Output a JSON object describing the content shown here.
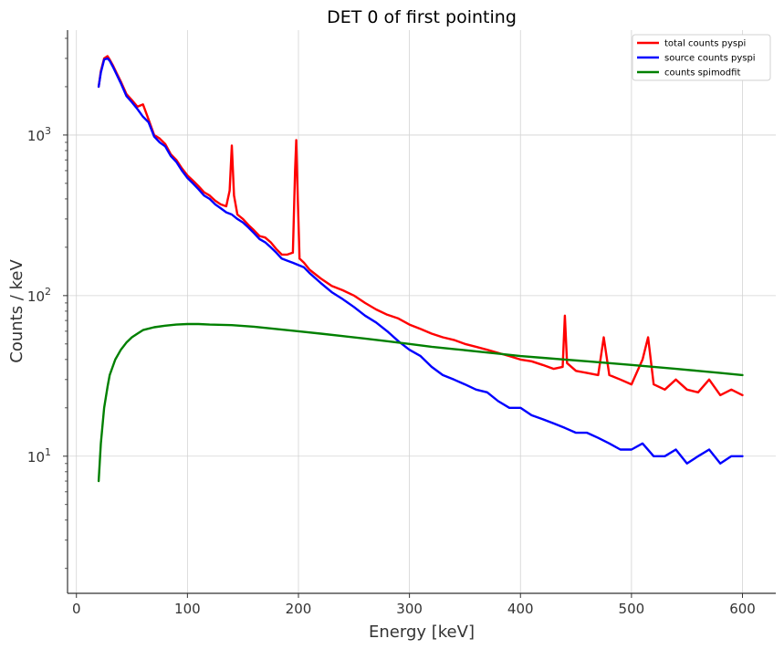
{
  "chart_data": {
    "type": "line",
    "title": "DET 0 of first pointing",
    "xlabel": "Energy [keV]",
    "ylabel": "Counts / keV",
    "xlim": [
      -8,
      630
    ],
    "ylim": [
      1.4,
      4500
    ],
    "yscale": "log",
    "grid": true,
    "legend_position": "top-right",
    "x_ticks": [
      0,
      100,
      200,
      300,
      400,
      500,
      600
    ],
    "x_tick_labels": [
      "0",
      "100",
      "200",
      "300",
      "400",
      "500",
      "600"
    ],
    "y_ticks": [
      10,
      100,
      1000
    ],
    "y_tick_labels": [
      {
        "base": "10",
        "exp": "1"
      },
      {
        "base": "10",
        "exp": "2"
      },
      {
        "base": "10",
        "exp": "3"
      }
    ],
    "series": [
      {
        "name": "total counts pyspi",
        "color": "#ff0000",
        "x": [
          20,
          22,
          25,
          28,
          30,
          33,
          36,
          40,
          45,
          50,
          55,
          60,
          65,
          70,
          75,
          80,
          85,
          90,
          95,
          100,
          105,
          110,
          115,
          120,
          125,
          130,
          135,
          138,
          140,
          142,
          145,
          150,
          155,
          160,
          165,
          170,
          175,
          180,
          185,
          190,
          195,
          197,
          198,
          199,
          201,
          205,
          210,
          220,
          230,
          240,
          250,
          260,
          270,
          280,
          290,
          300,
          310,
          320,
          330,
          340,
          350,
          360,
          370,
          380,
          390,
          400,
          410,
          420,
          430,
          438,
          440,
          442,
          450,
          460,
          470,
          475,
          480,
          490,
          500,
          510,
          515,
          520,
          530,
          540,
          550,
          560,
          570,
          580,
          590,
          600
        ],
        "values": [
          2000,
          2500,
          3000,
          3100,
          2950,
          2700,
          2450,
          2150,
          1800,
          1650,
          1500,
          1550,
          1250,
          1000,
          950,
          880,
          760,
          700,
          620,
          560,
          520,
          480,
          440,
          420,
          390,
          370,
          360,
          450,
          860,
          420,
          320,
          300,
          275,
          255,
          235,
          230,
          215,
          195,
          180,
          180,
          185,
          600,
          930,
          500,
          170,
          160,
          145,
          128,
          115,
          108,
          100,
          90,
          82,
          76,
          72,
          66,
          62,
          58,
          55,
          53,
          50,
          48,
          46,
          44,
          42,
          40,
          39,
          37,
          35,
          36,
          75,
          38,
          34,
          33,
          32,
          55,
          32,
          30,
          28,
          40,
          55,
          28,
          26,
          30,
          26,
          25,
          30,
          24,
          26,
          24
        ]
      },
      {
        "name": "source counts pyspi",
        "color": "#0000ff",
        "x": [
          20,
          22,
          25,
          28,
          30,
          33,
          36,
          40,
          45,
          50,
          55,
          60,
          65,
          70,
          75,
          80,
          85,
          90,
          95,
          100,
          105,
          110,
          115,
          120,
          125,
          130,
          135,
          140,
          145,
          150,
          155,
          160,
          165,
          170,
          175,
          180,
          185,
          190,
          195,
          200,
          205,
          210,
          220,
          230,
          240,
          250,
          260,
          270,
          280,
          290,
          300,
          310,
          320,
          330,
          340,
          350,
          360,
          370,
          380,
          390,
          400,
          410,
          420,
          430,
          440,
          450,
          460,
          470,
          480,
          490,
          500,
          510,
          520,
          530,
          540,
          550,
          560,
          570,
          580,
          590,
          600
        ],
        "values": [
          2000,
          2450,
          2950,
          3000,
          2900,
          2650,
          2400,
          2100,
          1750,
          1600,
          1450,
          1300,
          1200,
          980,
          900,
          850,
          740,
          680,
          600,
          540,
          500,
          460,
          420,
          400,
          370,
          350,
          330,
          320,
          300,
          285,
          265,
          245,
          225,
          215,
          200,
          185,
          170,
          165,
          160,
          155,
          150,
          138,
          120,
          105,
          95,
          85,
          75,
          68,
          60,
          52,
          46,
          42,
          36,
          32,
          30,
          28,
          26,
          25,
          22,
          20,
          20,
          18,
          17,
          16,
          15,
          14,
          14,
          13,
          12,
          11,
          11,
          12,
          10,
          10,
          11,
          9,
          10,
          11,
          9,
          10,
          10
        ]
      },
      {
        "name": "counts spimodfit",
        "color": "#008000",
        "x": [
          20,
          22,
          25,
          28,
          30,
          35,
          40,
          45,
          50,
          55,
          60,
          70,
          80,
          90,
          100,
          110,
          120,
          140,
          160,
          180,
          200,
          220,
          240,
          260,
          280,
          300,
          320,
          340,
          360,
          380,
          400,
          420,
          440,
          460,
          480,
          500,
          520,
          540,
          560,
          580,
          600
        ],
        "values": [
          7,
          12,
          20,
          27,
          32,
          40,
          46,
          51,
          55,
          58,
          61,
          63.5,
          65,
          66,
          66.5,
          66.5,
          66,
          65.5,
          64,
          62,
          60,
          58,
          56,
          54,
          52,
          50,
          48,
          46.5,
          45,
          43.5,
          42,
          41,
          40,
          39,
          38,
          37,
          36,
          35,
          34,
          33,
          32
        ]
      }
    ]
  }
}
